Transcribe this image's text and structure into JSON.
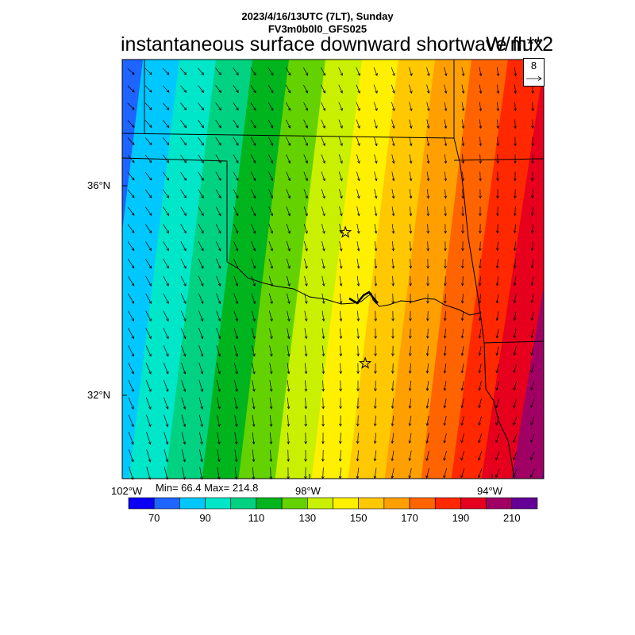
{
  "header": {
    "date_line": "2023/4/16/13UTC (7LT), Sunday",
    "model_line": "FV3m0b0l0_GFS025",
    "variable": "instantaneous surface downward shortwave flux",
    "units": "W/m**2"
  },
  "reference_vector": {
    "label": "8"
  },
  "axes": {
    "lat_labels": [
      {
        "text": "36°N",
        "value": 36
      },
      {
        "text": "32°N",
        "value": 32
      }
    ],
    "lon_labels": [
      {
        "text": "102°W",
        "value": -102
      },
      {
        "text": "98°W",
        "value": -98
      },
      {
        "text": "94°W",
        "value": -94
      }
    ]
  },
  "stats": {
    "text": "Min= 66.4 Max= 214.8",
    "min": 66.4,
    "max": 214.8
  },
  "colorbar": {
    "colors": [
      "#0a00f5",
      "#1e64ff",
      "#00c8ff",
      "#00e6c8",
      "#00d282",
      "#00b41e",
      "#64d200",
      "#c8f000",
      "#fff000",
      "#ffc800",
      "#ffa000",
      "#ff6400",
      "#ff2800",
      "#e6001e",
      "#a00064",
      "#640096"
    ],
    "labels": [
      {
        "text": "70",
        "index": 1
      },
      {
        "text": "90",
        "index": 3
      },
      {
        "text": "110",
        "index": 5
      },
      {
        "text": "130",
        "index": 7
      },
      {
        "text": "150",
        "index": 9
      },
      {
        "text": "170",
        "index": 11
      },
      {
        "text": "190",
        "index": 13
      },
      {
        "text": "210",
        "index": 15
      }
    ],
    "levels_min": 60,
    "levels_step": 10
  },
  "map": {
    "lon_range": [
      -102,
      -93.5
    ],
    "lat_range": [
      30.5,
      38.5
    ],
    "field": "shortwave flux increasing west to east",
    "markers": [
      {
        "name": "star",
        "lon": -97.5,
        "lat": 35.2
      },
      {
        "name": "star",
        "lon": -97.1,
        "lat": 32.7
      }
    ]
  }
}
